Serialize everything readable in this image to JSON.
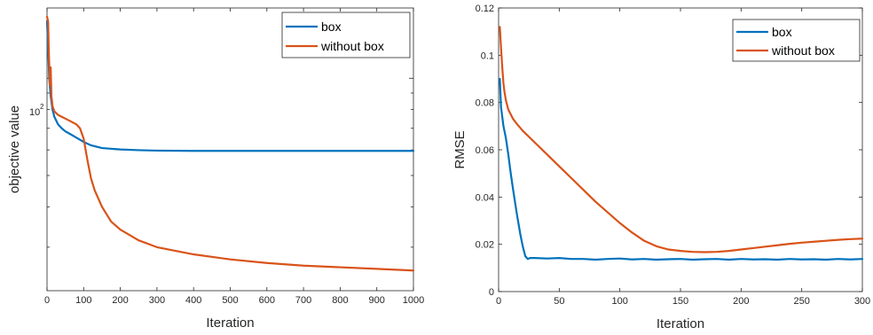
{
  "chart_data": [
    {
      "type": "line",
      "title": "",
      "xlabel": "Iteration",
      "ylabel": "objective value",
      "xlim": [
        0,
        1000
      ],
      "yscale": "log",
      "ylim": [
        22,
        165
      ],
      "x_ticks": [
        0,
        100,
        200,
        300,
        400,
        500,
        600,
        700,
        800,
        900,
        1000
      ],
      "y_tick_label": {
        "base": "10",
        "exponent": "2",
        "value": 100
      },
      "legend_position": "top-right",
      "series": [
        {
          "name": "box",
          "color": "#0072BD",
          "x": [
            0,
            3,
            6,
            10,
            15,
            20,
            30,
            40,
            50,
            60,
            70,
            80,
            90,
            100,
            120,
            150,
            200,
            250,
            300,
            400,
            500,
            600,
            700,
            800,
            900,
            1000
          ],
          "y": [
            150,
            125,
            100,
            88,
            80,
            76,
            72,
            70,
            68.5,
            67.5,
            66.5,
            65.5,
            64.5,
            63.5,
            62,
            60.8,
            60.2,
            59.9,
            59.7,
            59.6,
            59.6,
            59.6,
            59.6,
            59.6,
            59.6,
            59.6
          ]
        },
        {
          "name": "without box",
          "color": "#D95319",
          "x": [
            0,
            3,
            5,
            8,
            10,
            12,
            15,
            20,
            30,
            40,
            50,
            60,
            70,
            80,
            90,
            100,
            110,
            120,
            130,
            150,
            175,
            200,
            250,
            300,
            400,
            500,
            600,
            700,
            800,
            900,
            1000
          ],
          "y": [
            155,
            150,
            120,
            95,
            108,
            88,
            82,
            79,
            77,
            76,
            75,
            74,
            73,
            72,
            70,
            65,
            56,
            49,
            45,
            40,
            36,
            34,
            31.5,
            30,
            28.5,
            27.5,
            26.8,
            26.3,
            26,
            25.7,
            25.4
          ]
        }
      ]
    },
    {
      "type": "line",
      "title": "",
      "xlabel": "Iteration",
      "ylabel": "RMSE",
      "xlim": [
        0,
        300
      ],
      "ylim": [
        0,
        0.12
      ],
      "x_ticks": [
        0,
        50,
        100,
        150,
        200,
        250,
        300
      ],
      "y_ticks": [
        0,
        0.02,
        0.04,
        0.06,
        0.08,
        0.1,
        0.12
      ],
      "legend_position": "top-right",
      "series": [
        {
          "name": "box",
          "color": "#0072BD",
          "x": [
            1,
            2,
            4,
            6,
            8,
            10,
            12,
            15,
            18,
            20,
            22,
            24,
            26,
            30,
            40,
            50,
            60,
            70,
            80,
            90,
            100,
            110,
            120,
            130,
            140,
            150,
            160,
            170,
            180,
            190,
            200,
            210,
            220,
            230,
            240,
            250,
            260,
            270,
            280,
            290,
            300
          ],
          "y": [
            0.09,
            0.078,
            0.07,
            0.065,
            0.058,
            0.05,
            0.043,
            0.033,
            0.024,
            0.019,
            0.015,
            0.0138,
            0.0142,
            0.0142,
            0.014,
            0.0142,
            0.0138,
            0.0138,
            0.0135,
            0.0138,
            0.014,
            0.0136,
            0.0138,
            0.0135,
            0.0137,
            0.0138,
            0.0135,
            0.0137,
            0.0138,
            0.0135,
            0.0138,
            0.0136,
            0.0137,
            0.0135,
            0.0138,
            0.0136,
            0.0137,
            0.0135,
            0.0138,
            0.0136,
            0.0138
          ]
        },
        {
          "name": "without box",
          "color": "#D95319",
          "x": [
            1,
            2,
            3,
            4,
            5,
            6,
            8,
            10,
            12,
            15,
            20,
            30,
            40,
            50,
            60,
            70,
            80,
            90,
            100,
            110,
            120,
            130,
            140,
            150,
            160,
            170,
            180,
            190,
            200,
            210,
            220,
            230,
            240,
            250,
            260,
            270,
            280,
            290,
            300
          ],
          "y": [
            0.112,
            0.103,
            0.095,
            0.088,
            0.084,
            0.081,
            0.077,
            0.075,
            0.073,
            0.071,
            0.068,
            0.063,
            0.058,
            0.053,
            0.048,
            0.043,
            0.038,
            0.0335,
            0.029,
            0.025,
            0.0215,
            0.0192,
            0.0178,
            0.0172,
            0.0168,
            0.0167,
            0.0168,
            0.0172,
            0.0178,
            0.0184,
            0.019,
            0.0196,
            0.0202,
            0.0207,
            0.0211,
            0.0215,
            0.0219,
            0.0222,
            0.0224
          ]
        }
      ]
    }
  ]
}
